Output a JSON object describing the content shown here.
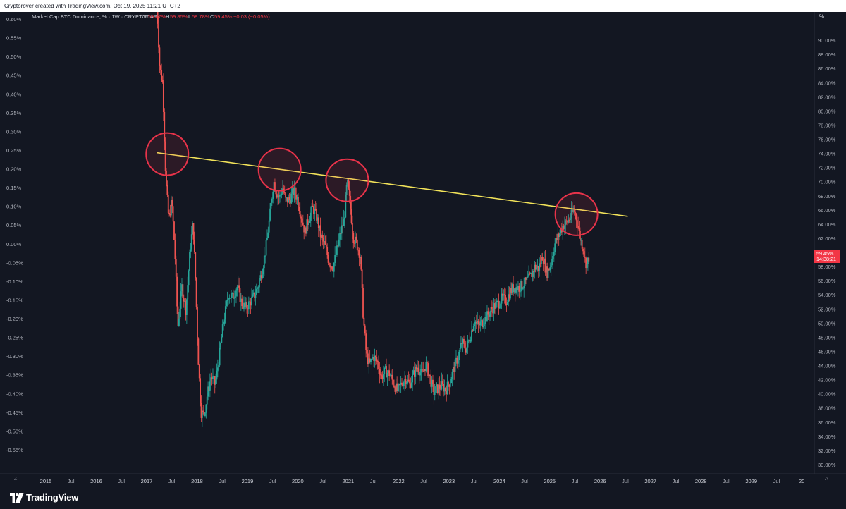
{
  "header": {
    "credit": "Cryptorover created with TradingView.com, Oct 19, 2025 11:21 UTC+2"
  },
  "legend": {
    "symbol": "Market Cap BTC Dominance, % · 1W · CRYPTOCAP",
    "o_label": "O",
    "o_value": "59.47%",
    "h_label": "H",
    "h_value": "59.85%",
    "l_label": "L",
    "l_value": "58.78%",
    "c_label": "C",
    "c_value": "59.45%",
    "change": "−0.03 (−0.05%)"
  },
  "right_axis": {
    "unit_label": "%",
    "price_tag": "59.45%",
    "countdown": "14:38:21"
  },
  "footer": {
    "logo_text": "TradingView",
    "corner_left": "Z",
    "corner_right": "A"
  },
  "colors": {
    "background": "#131722",
    "up": "#26a69a",
    "down": "#ef5350",
    "line": "#f2e35a",
    "circle": "#e8334a",
    "axis_text": "#b2b5be",
    "price_tag": "#f23645"
  },
  "chart_data": {
    "type": "candlestick",
    "right_axis": {
      "ticks": [
        "90.00%",
        "88.00%",
        "86.00%",
        "84.00%",
        "82.00%",
        "80.00%",
        "78.00%",
        "76.00%",
        "74.00%",
        "72.00%",
        "70.00%",
        "68.00%",
        "66.00%",
        "64.00%",
        "62.00%",
        "60.00%",
        "58.00%",
        "56.00%",
        "54.00%",
        "52.00%",
        "50.00%",
        "48.00%",
        "46.00%",
        "44.00%",
        "42.00%",
        "40.00%",
        "38.00%",
        "36.00%",
        "34.00%",
        "32.00%",
        "30.00%"
      ],
      "ylim": [
        29.4,
        92.0
      ]
    },
    "left_axis": {
      "ticks": [
        "0.60%",
        "0.55%",
        "0.50%",
        "0.45%",
        "0.40%",
        "0.35%",
        "0.30%",
        "0.25%",
        "0.20%",
        "0.15%",
        "0.10%",
        "0.05%",
        "0.00%",
        "-0.05%",
        "-0.10%",
        "-0.15%",
        "-0.20%",
        "-0.25%",
        "-0.30%",
        "-0.35%",
        "-0.40%",
        "-0.45%",
        "-0.50%",
        "-0.55%"
      ]
    },
    "x_axis": {
      "ticks": [
        {
          "label": "2015",
          "t": 2015.0
        },
        {
          "label": "Jul",
          "t": 2015.5
        },
        {
          "label": "2016",
          "t": 2016.0
        },
        {
          "label": "Jul",
          "t": 2016.5
        },
        {
          "label": "2017",
          "t": 2017.0
        },
        {
          "label": "Jul",
          "t": 2017.5
        },
        {
          "label": "2018",
          "t": 2018.0
        },
        {
          "label": "Jul",
          "t": 2018.5
        },
        {
          "label": "2019",
          "t": 2019.0
        },
        {
          "label": "Jul",
          "t": 2019.5
        },
        {
          "label": "2020",
          "t": 2020.0
        },
        {
          "label": "Jul",
          "t": 2020.5
        },
        {
          "label": "2021",
          "t": 2021.0
        },
        {
          "label": "Jul",
          "t": 2021.5
        },
        {
          "label": "2022",
          "t": 2022.0
        },
        {
          "label": "Jul",
          "t": 2022.5
        },
        {
          "label": "2023",
          "t": 2023.0
        },
        {
          "label": "Jul",
          "t": 2023.5
        },
        {
          "label": "2024",
          "t": 2024.0
        },
        {
          "label": "Jul",
          "t": 2024.5
        },
        {
          "label": "2025",
          "t": 2025.0
        },
        {
          "label": "Jul",
          "t": 2025.5
        },
        {
          "label": "2026",
          "t": 2026.0
        },
        {
          "label": "Jul",
          "t": 2026.5
        },
        {
          "label": "2027",
          "t": 2027.0
        },
        {
          "label": "Jul",
          "t": 2027.5
        },
        {
          "label": "2028",
          "t": 2028.0
        },
        {
          "label": "Jul",
          "t": 2028.5
        },
        {
          "label": "2029",
          "t": 2029.0
        },
        {
          "label": "Jul",
          "t": 2029.5
        },
        {
          "label": "20",
          "t": 2030.0
        }
      ],
      "xlim": [
        2014.72,
        2030.25
      ]
    },
    "series": [
      {
        "points": [
          [
            2017.2,
            95.8
          ],
          [
            2017.26,
            86.2
          ],
          [
            2017.32,
            83.8
          ],
          [
            2017.38,
            70.5
          ],
          [
            2017.44,
            64.6
          ],
          [
            2017.5,
            67.3
          ],
          [
            2017.56,
            60.2
          ],
          [
            2017.62,
            49.5
          ],
          [
            2017.7,
            55.1
          ],
          [
            2017.78,
            51.8
          ],
          [
            2017.86,
            60.1
          ],
          [
            2017.92,
            64.2
          ],
          [
            2017.97,
            56.3
          ],
          [
            2018.02,
            45.6
          ],
          [
            2018.08,
            37.4
          ],
          [
            2018.14,
            37.0
          ],
          [
            2018.2,
            39.7
          ],
          [
            2018.28,
            42.5
          ],
          [
            2018.36,
            41.3
          ],
          [
            2018.44,
            45.2
          ],
          [
            2018.52,
            49.8
          ],
          [
            2018.62,
            54.1
          ],
          [
            2018.7,
            53.6
          ],
          [
            2018.8,
            55.2
          ],
          [
            2018.88,
            52.9
          ],
          [
            2018.96,
            52.1
          ],
          [
            2019.04,
            52.8
          ],
          [
            2019.14,
            53.9
          ],
          [
            2019.22,
            55.4
          ],
          [
            2019.3,
            57.8
          ],
          [
            2019.38,
            61.2
          ],
          [
            2019.46,
            66.1
          ],
          [
            2019.52,
            70.1
          ],
          [
            2019.58,
            68.4
          ],
          [
            2019.64,
            67.8
          ],
          [
            2019.7,
            69.1
          ],
          [
            2019.76,
            67.3
          ],
          [
            2019.84,
            67.5
          ],
          [
            2019.92,
            68.7
          ],
          [
            2019.98,
            67.9
          ],
          [
            2020.06,
            65.4
          ],
          [
            2020.14,
            62.9
          ],
          [
            2020.22,
            64.8
          ],
          [
            2020.3,
            66.3
          ],
          [
            2020.38,
            64.9
          ],
          [
            2020.46,
            62.1
          ],
          [
            2020.54,
            61.0
          ],
          [
            2020.62,
            58.6
          ],
          [
            2020.7,
            57.9
          ],
          [
            2020.78,
            60.4
          ],
          [
            2020.86,
            63.1
          ],
          [
            2020.92,
            64.6
          ],
          [
            2020.98,
            70.1
          ],
          [
            2021.04,
            66.7
          ],
          [
            2021.1,
            62.2
          ],
          [
            2021.18,
            61.0
          ],
          [
            2021.24,
            59.5
          ],
          [
            2021.3,
            50.9
          ],
          [
            2021.36,
            45.6
          ],
          [
            2021.42,
            44.1
          ],
          [
            2021.5,
            45.3
          ],
          [
            2021.58,
            44.5
          ],
          [
            2021.66,
            42.4
          ],
          [
            2021.74,
            43.2
          ],
          [
            2021.82,
            42.8
          ],
          [
            2021.9,
            41.5
          ],
          [
            2021.98,
            40.3
          ],
          [
            2022.06,
            41.5
          ],
          [
            2022.14,
            42.2
          ],
          [
            2022.22,
            41.3
          ],
          [
            2022.3,
            42.8
          ],
          [
            2022.38,
            43.9
          ],
          [
            2022.46,
            42.6
          ],
          [
            2022.54,
            44.2
          ],
          [
            2022.62,
            42.3
          ],
          [
            2022.7,
            40.2
          ],
          [
            2022.78,
            40.8
          ],
          [
            2022.86,
            41.1
          ],
          [
            2022.94,
            40.6
          ],
          [
            2023.02,
            41.8
          ],
          [
            2023.1,
            43.7
          ],
          [
            2023.18,
            45.2
          ],
          [
            2023.26,
            47.3
          ],
          [
            2023.34,
            46.3
          ],
          [
            2023.42,
            48.1
          ],
          [
            2023.5,
            50.4
          ],
          [
            2023.58,
            49.6
          ],
          [
            2023.66,
            50.1
          ],
          [
            2023.74,
            50.8
          ],
          [
            2023.82,
            51.7
          ],
          [
            2023.9,
            52.4
          ],
          [
            2023.98,
            52.8
          ],
          [
            2024.06,
            53.5
          ],
          [
            2024.14,
            53.2
          ],
          [
            2024.22,
            54.6
          ],
          [
            2024.3,
            55.1
          ],
          [
            2024.38,
            55.0
          ],
          [
            2024.46,
            55.4
          ],
          [
            2024.54,
            55.9
          ],
          [
            2024.62,
            56.6
          ],
          [
            2024.7,
            57.9
          ],
          [
            2024.78,
            57.8
          ],
          [
            2024.86,
            59.6
          ],
          [
            2024.94,
            57.0
          ],
          [
            2025.02,
            58.3
          ],
          [
            2025.1,
            61.2
          ],
          [
            2025.18,
            62.4
          ],
          [
            2025.26,
            63.8
          ],
          [
            2025.34,
            64.2
          ],
          [
            2025.42,
            65.1
          ],
          [
            2025.48,
            66.0
          ],
          [
            2025.54,
            64.6
          ],
          [
            2025.6,
            62.1
          ],
          [
            2025.66,
            60.8
          ],
          [
            2025.7,
            58.9
          ],
          [
            2025.74,
            58.2
          ],
          [
            2025.78,
            59.45
          ]
        ]
      },
      {
        "points": [
          [
            2017.2,
            74.1
          ],
          [
            2026.55,
            65.1
          ]
        ]
      }
    ],
    "annotations": [
      {
        "shape": "circle",
        "t": 2017.41,
        "v": 73.9
      },
      {
        "shape": "circle",
        "t": 2019.64,
        "v": 71.7
      },
      {
        "shape": "circle",
        "t": 2020.98,
        "v": 70.2
      },
      {
        "shape": "circle",
        "t": 2025.53,
        "v": 65.4
      }
    ]
  }
}
